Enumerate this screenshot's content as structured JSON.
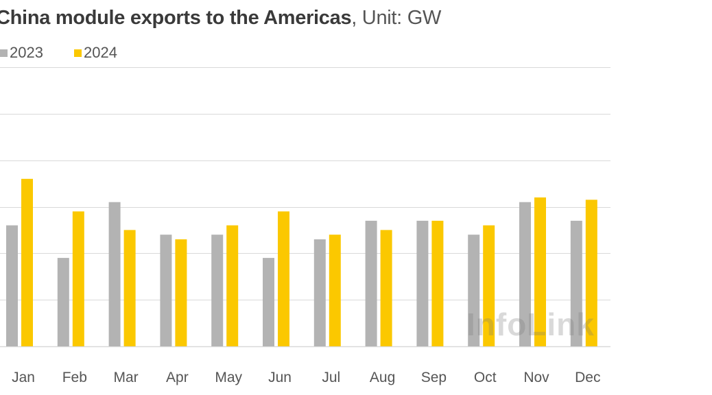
{
  "title": {
    "bold": "China module exports to the Americas",
    "unit": ", Unit: GW"
  },
  "watermark": "InfoLink",
  "colors": {
    "s2023": "#b3b3b3",
    "s2024": "#fbc800",
    "grid": "#d9d9d9",
    "axis_text": "#555555"
  },
  "chart_data": {
    "type": "bar",
    "title": "China module exports to the Americas, Unit: GW",
    "categories": [
      "Jan",
      "Feb",
      "Mar",
      "Apr",
      "May",
      "Jun",
      "Jul",
      "Aug",
      "Sep",
      "Oct",
      "Nov",
      "Dec"
    ],
    "series": [
      {
        "name": "2023",
        "values": [
          2.6,
          1.9,
          3.1,
          2.4,
          2.4,
          1.9,
          2.3,
          2.7,
          2.7,
          2.4,
          3.1,
          2.7
        ]
      },
      {
        "name": "2024",
        "values": [
          3.6,
          2.9,
          2.5,
          2.3,
          2.6,
          2.9,
          2.4,
          2.5,
          2.7,
          2.6,
          3.2,
          3.15
        ]
      }
    ],
    "ylim": [
      0,
      6
    ],
    "grid": true,
    "legend": "top-left"
  }
}
